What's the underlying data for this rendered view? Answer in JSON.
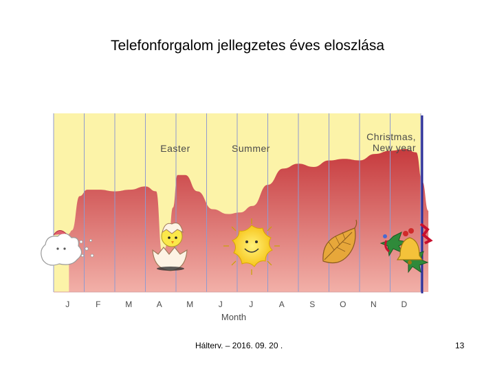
{
  "slide": {
    "title": "Telefonforgalom jellegzetes éves eloszlása",
    "footer_text": "Hálterv. – 2016. 09. 20 .",
    "page_number": "13"
  },
  "colors": {
    "background_band": "#fcf3a8",
    "area_top": "#c63a3d",
    "area_bottom": "#f2b0a8",
    "gridline": "#8f9ad0",
    "border_right": "#2c2f99"
  },
  "chart_data": {
    "type": "area",
    "title": "",
    "xlabel": "Month",
    "ylabel": "",
    "categories": [
      "J",
      "F",
      "M",
      "A",
      "M",
      "J",
      "J",
      "A",
      "S",
      "O",
      "N",
      "D"
    ],
    "x": [
      0.0,
      0.1,
      0.35,
      0.6,
      1.0,
      1.5,
      2.0,
      2.5,
      2.85,
      3.05,
      3.25,
      3.4,
      3.55,
      3.8,
      4.2,
      4.7,
      5.2,
      5.6,
      6.0,
      6.5,
      7.0,
      7.5,
      8.0,
      8.5,
      9.0,
      9.5,
      10.0,
      10.5,
      11.0,
      11.35,
      11.55,
      11.75
    ],
    "values": [
      3.6,
      3.8,
      5.9,
      6.3,
      6.3,
      6.2,
      6.3,
      6.5,
      6.2,
      2.4,
      3.0,
      5.2,
      7.2,
      7.2,
      6.2,
      5.1,
      4.8,
      4.9,
      5.3,
      6.6,
      7.6,
      7.9,
      7.7,
      8.1,
      8.2,
      8.1,
      8.5,
      8.7,
      8.8,
      8.6,
      6.8,
      5.0
    ],
    "ylim": [
      0,
      11
    ],
    "annotations": [
      {
        "text": "Easter",
        "month_index": 3.5,
        "icon": "hatching-chick-icon"
      },
      {
        "text": "Summer",
        "month_index": 6.1,
        "icon": "sun-icon"
      },
      {
        "text": "Christmas,",
        "month_index": 11.0,
        "icon": "christmas-bell-icon"
      },
      {
        "text": "New year",
        "month_index": 11.0,
        "icon": ""
      }
    ],
    "decorations": [
      {
        "month_index": 0.15,
        "icon": "snow-cloud-icon"
      },
      {
        "month_index": 9.1,
        "icon": "autumn-leaf-icon"
      }
    ],
    "grid": true,
    "legend": "none"
  }
}
